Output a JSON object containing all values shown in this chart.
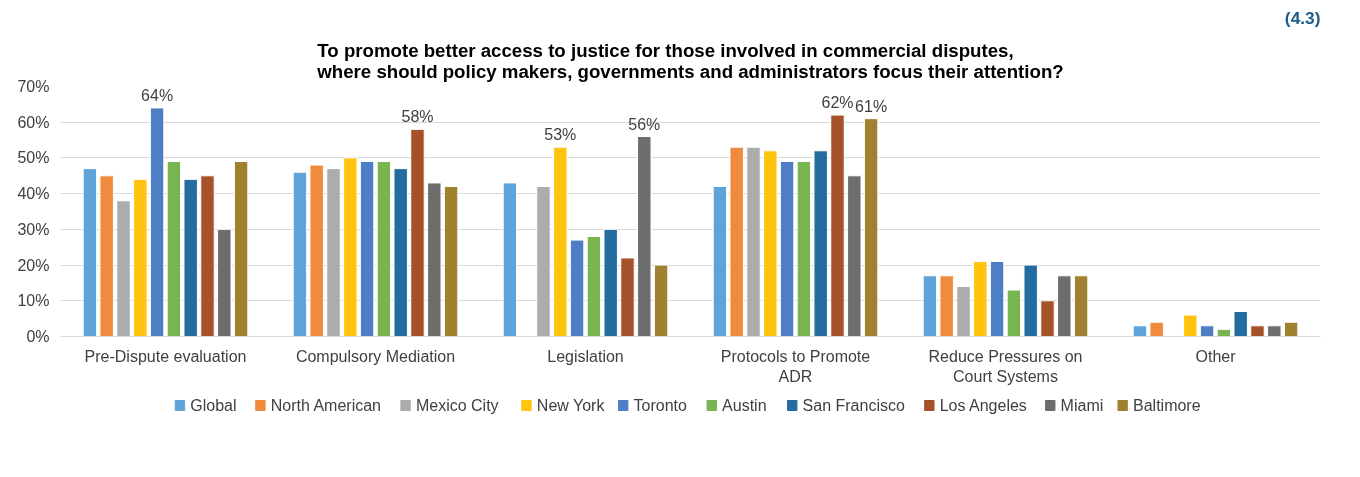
{
  "chart_data": {
    "type": "bar",
    "title": "To promote better access to justice for those involved in commercial disputes, where should policy makers, governments and administrators focus their attention?",
    "annotations": [
      "(4.3)"
    ],
    "categories": [
      "Pre-Dispute evaluation",
      "Compulsory Mediation",
      "Legislation",
      "Protocols to Promote ADR",
      "Reduce Pressures on Court Systems",
      "Other"
    ],
    "series": [
      {
        "name": "Global",
        "color": "#5ea4da",
        "values": [
          47,
          46,
          43,
          42,
          17,
          3
        ]
      },
      {
        "name": "North American",
        "color": "#f08a3c",
        "values": [
          45,
          48,
          null,
          53,
          17,
          4
        ]
      },
      {
        "name": "Mexico City",
        "color": "#acacac",
        "values": [
          38,
          47,
          42,
          53,
          14,
          null
        ]
      },
      {
        "name": "New York",
        "color": "#ffc50e",
        "values": [
          44,
          50,
          53,
          52,
          21,
          6
        ],
        "value_labels": [
          null,
          null,
          "53%",
          null,
          null,
          null
        ]
      },
      {
        "name": "Toronto",
        "color": "#4e7ec4",
        "values": [
          64,
          49,
          27,
          49,
          21,
          3
        ],
        "value_labels": [
          "64%",
          null,
          null,
          null,
          null,
          null
        ]
      },
      {
        "name": "Austin",
        "color": "#78b450",
        "values": [
          49,
          49,
          28,
          49,
          13,
          2
        ]
      },
      {
        "name": "San Francisco",
        "color": "#246b9f",
        "values": [
          44,
          47,
          30,
          52,
          20,
          7
        ]
      },
      {
        "name": "Los Angeles",
        "color": "#a5522a",
        "values": [
          45,
          58,
          22,
          62,
          10,
          3
        ],
        "value_labels": [
          null,
          "58%",
          null,
          "62%",
          null,
          null
        ]
      },
      {
        "name": "Miami",
        "color": "#6d6d6d",
        "values": [
          30,
          43,
          56,
          45,
          17,
          3
        ],
        "value_labels": [
          null,
          null,
          "56%",
          null,
          null,
          null
        ]
      },
      {
        "name": "Baltimore",
        "color": "#9f812f",
        "values": [
          49,
          42,
          20,
          61,
          17,
          4
        ],
        "value_labels": [
          null,
          null,
          null,
          "61%",
          null,
          null
        ]
      }
    ],
    "ylim": [
      0,
      70
    ],
    "yticks": [
      {
        "value": 0,
        "label": "0%"
      },
      {
        "value": 10,
        "label": "10%"
      },
      {
        "value": 20,
        "label": "20%"
      },
      {
        "value": 30,
        "label": "30%"
      },
      {
        "value": 40,
        "label": "40%"
      },
      {
        "value": 50,
        "label": "50%"
      },
      {
        "value": 60,
        "label": "60%"
      },
      {
        "value": 70,
        "label": "70%"
      }
    ],
    "grid": "y",
    "legend": "bottom"
  }
}
